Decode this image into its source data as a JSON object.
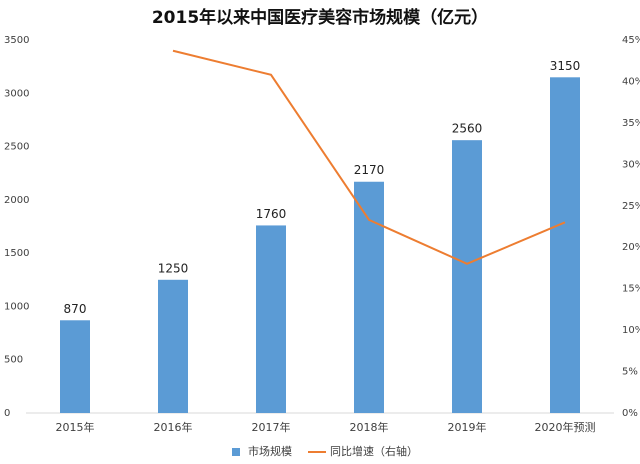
{
  "chart_data": {
    "type": "bar",
    "title": "2015年以来中国医疗美容市场规模（亿元）",
    "categories": [
      "2015年",
      "2016年",
      "2017年",
      "2018年",
      "2019年",
      "2020年预测"
    ],
    "series": [
      {
        "name": "市场规模",
        "type": "bar",
        "color": "#5b9bd5",
        "values": [
          870,
          1250,
          1760,
          2170,
          2560,
          3150
        ]
      },
      {
        "name": "同比增速（右轴）",
        "type": "line",
        "axis": "y2",
        "color": "#ed7d31",
        "values": [
          null,
          43.7,
          40.8,
          23.3,
          18.0,
          23.0
        ]
      }
    ],
    "ylim": [
      0,
      3500
    ],
    "yticks": [
      0,
      500,
      1000,
      1500,
      2000,
      2500,
      3000,
      3500
    ],
    "y2lim": [
      0,
      45
    ],
    "y2ticks": [
      {
        "value": 0,
        "label": "0%"
      },
      {
        "value": 5,
        "label": "5%"
      },
      {
        "value": 10,
        "label": "10%"
      },
      {
        "value": 15,
        "label": "15%"
      },
      {
        "value": 20,
        "label": "20%"
      },
      {
        "value": 25,
        "label": "25%"
      },
      {
        "value": 30,
        "label": "30%"
      },
      {
        "value": 35,
        "label": "35%"
      },
      {
        "value": 40,
        "label": "40%"
      },
      {
        "value": 45,
        "label": "45%"
      }
    ],
    "legend": "bottom"
  }
}
